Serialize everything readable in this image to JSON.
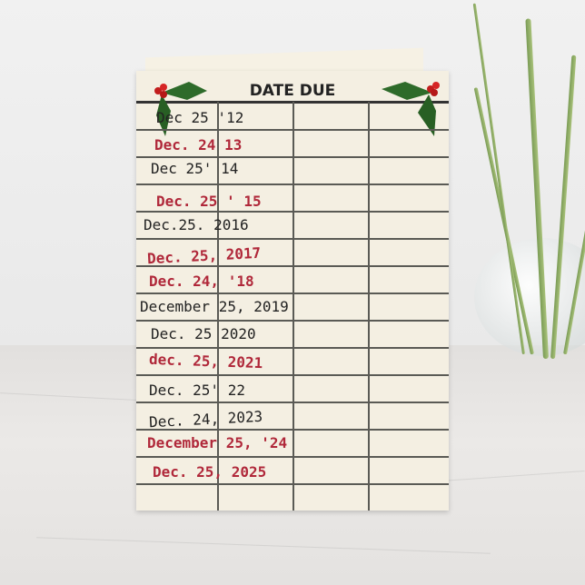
{
  "card": {
    "title": "DATE DUE",
    "entries": [
      {
        "text": "Dec 25 '12",
        "color": "#222222"
      },
      {
        "text": "Dec. 24 13",
        "color": "#b0283a"
      },
      {
        "text": "Dec 25' 14",
        "color": "#222222"
      },
      {
        "text": "Dec. 25 ' 15",
        "color": "#b0283a"
      },
      {
        "text": "Dec.25. 2016",
        "color": "#222222"
      },
      {
        "text": "Dec. 25, 2017",
        "color": "#b0283a"
      },
      {
        "text": "Dec. 24, '18",
        "color": "#b0283a"
      },
      {
        "text": "December 25, 2019",
        "color": "#222222"
      },
      {
        "text": "Dec. 25 2020",
        "color": "#222222"
      },
      {
        "text": "dec. 25, 2021",
        "color": "#b0283a"
      },
      {
        "text": "Dec. 25' 22",
        "color": "#222222"
      },
      {
        "text": "Dec. 24, 2023",
        "color": "#222222"
      },
      {
        "text": "December 25, '24",
        "color": "#b0283a"
      },
      {
        "text": "Dec. 25, 2025",
        "color": "#b0283a"
      }
    ],
    "decoration_icon": "holly-icon",
    "paper_color": "#f4efe2"
  }
}
